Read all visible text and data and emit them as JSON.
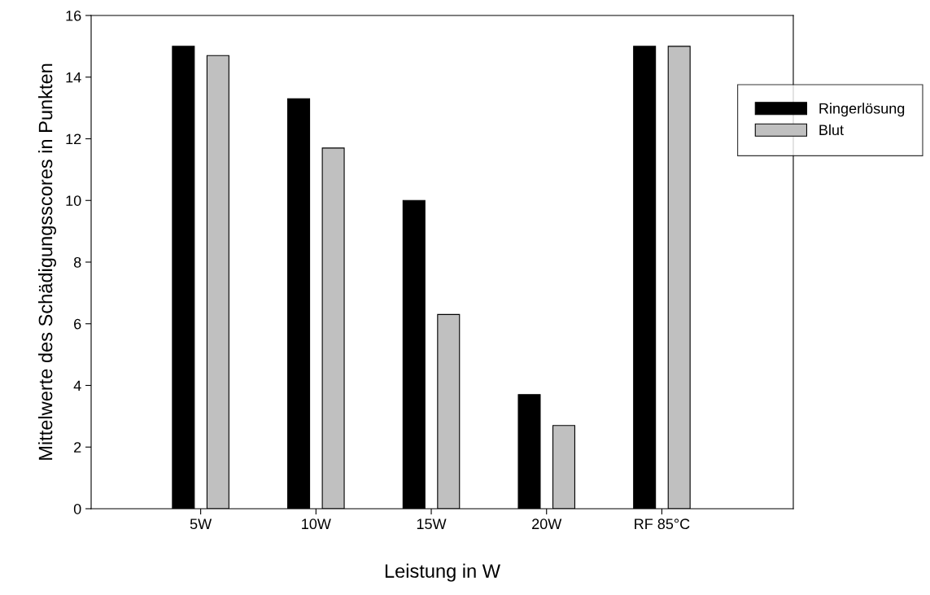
{
  "chart_data": {
    "type": "bar",
    "xlabel": "Leistung in W",
    "ylabel": "Mittelwerte des Schädigungsscores in Punkten",
    "categories": [
      "5W",
      "10W",
      "15W",
      "20W",
      "RF 85°C"
    ],
    "series": [
      {
        "name": "Ringerlösung",
        "color": "#000000",
        "values": [
          15,
          13.3,
          10,
          3.7,
          15
        ]
      },
      {
        "name": "Blut",
        "color": "#c0c0c0",
        "values": [
          14.7,
          11.7,
          6.3,
          2.7,
          15
        ]
      }
    ],
    "ylim": [
      0,
      16
    ],
    "yticks": [
      0,
      2,
      4,
      6,
      8,
      10,
      12,
      14,
      16
    ],
    "grid": false,
    "legend": "top right"
  }
}
